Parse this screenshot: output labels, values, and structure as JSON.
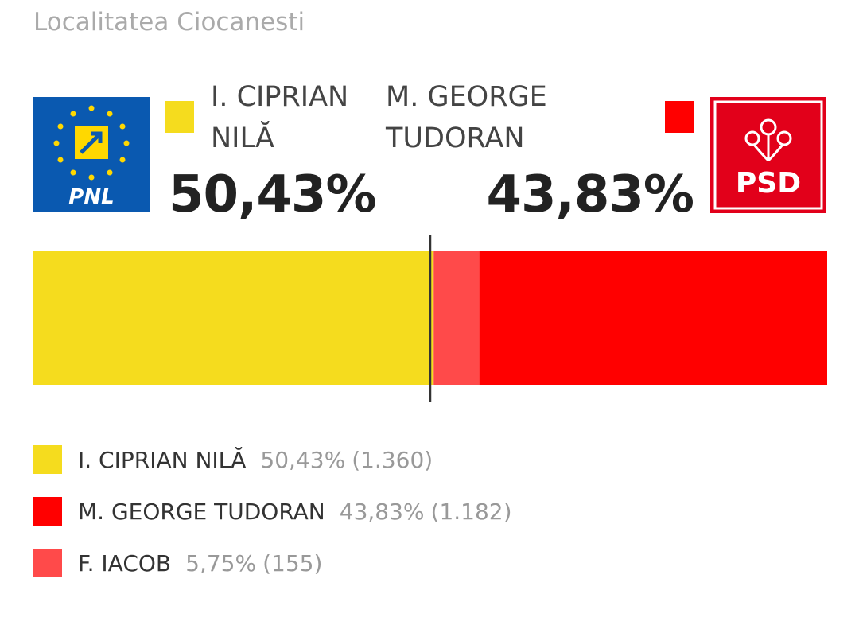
{
  "chart_data": {
    "type": "stacked-bar",
    "title": "Localitatea Ciocanesti",
    "xlim": [
      0,
      100
    ],
    "reference_line": 50,
    "series": [
      {
        "name": "I. CIPRIAN NILĂ",
        "color": "#f5dc1e",
        "values": [
          50.43
        ],
        "value_labels": [
          "50,43%"
        ],
        "votes": [
          1360
        ],
        "vote_labels": [
          "(1.360)"
        ]
      },
      {
        "name": "M. GEORGE TUDORAN",
        "color": "#ff0000",
        "values": [
          43.83
        ],
        "value_labels": [
          "43,83%"
        ],
        "votes": [
          1182
        ],
        "vote_labels": [
          "(1.182)"
        ]
      },
      {
        "name": "F. IACOB",
        "color": "#ff4a4a",
        "values": [
          5.75
        ],
        "value_labels": [
          "5,75%"
        ],
        "votes": [
          155
        ],
        "vote_labels": [
          "(155)"
        ]
      }
    ]
  },
  "logos": {
    "left": "PNL",
    "right": "PSD"
  }
}
